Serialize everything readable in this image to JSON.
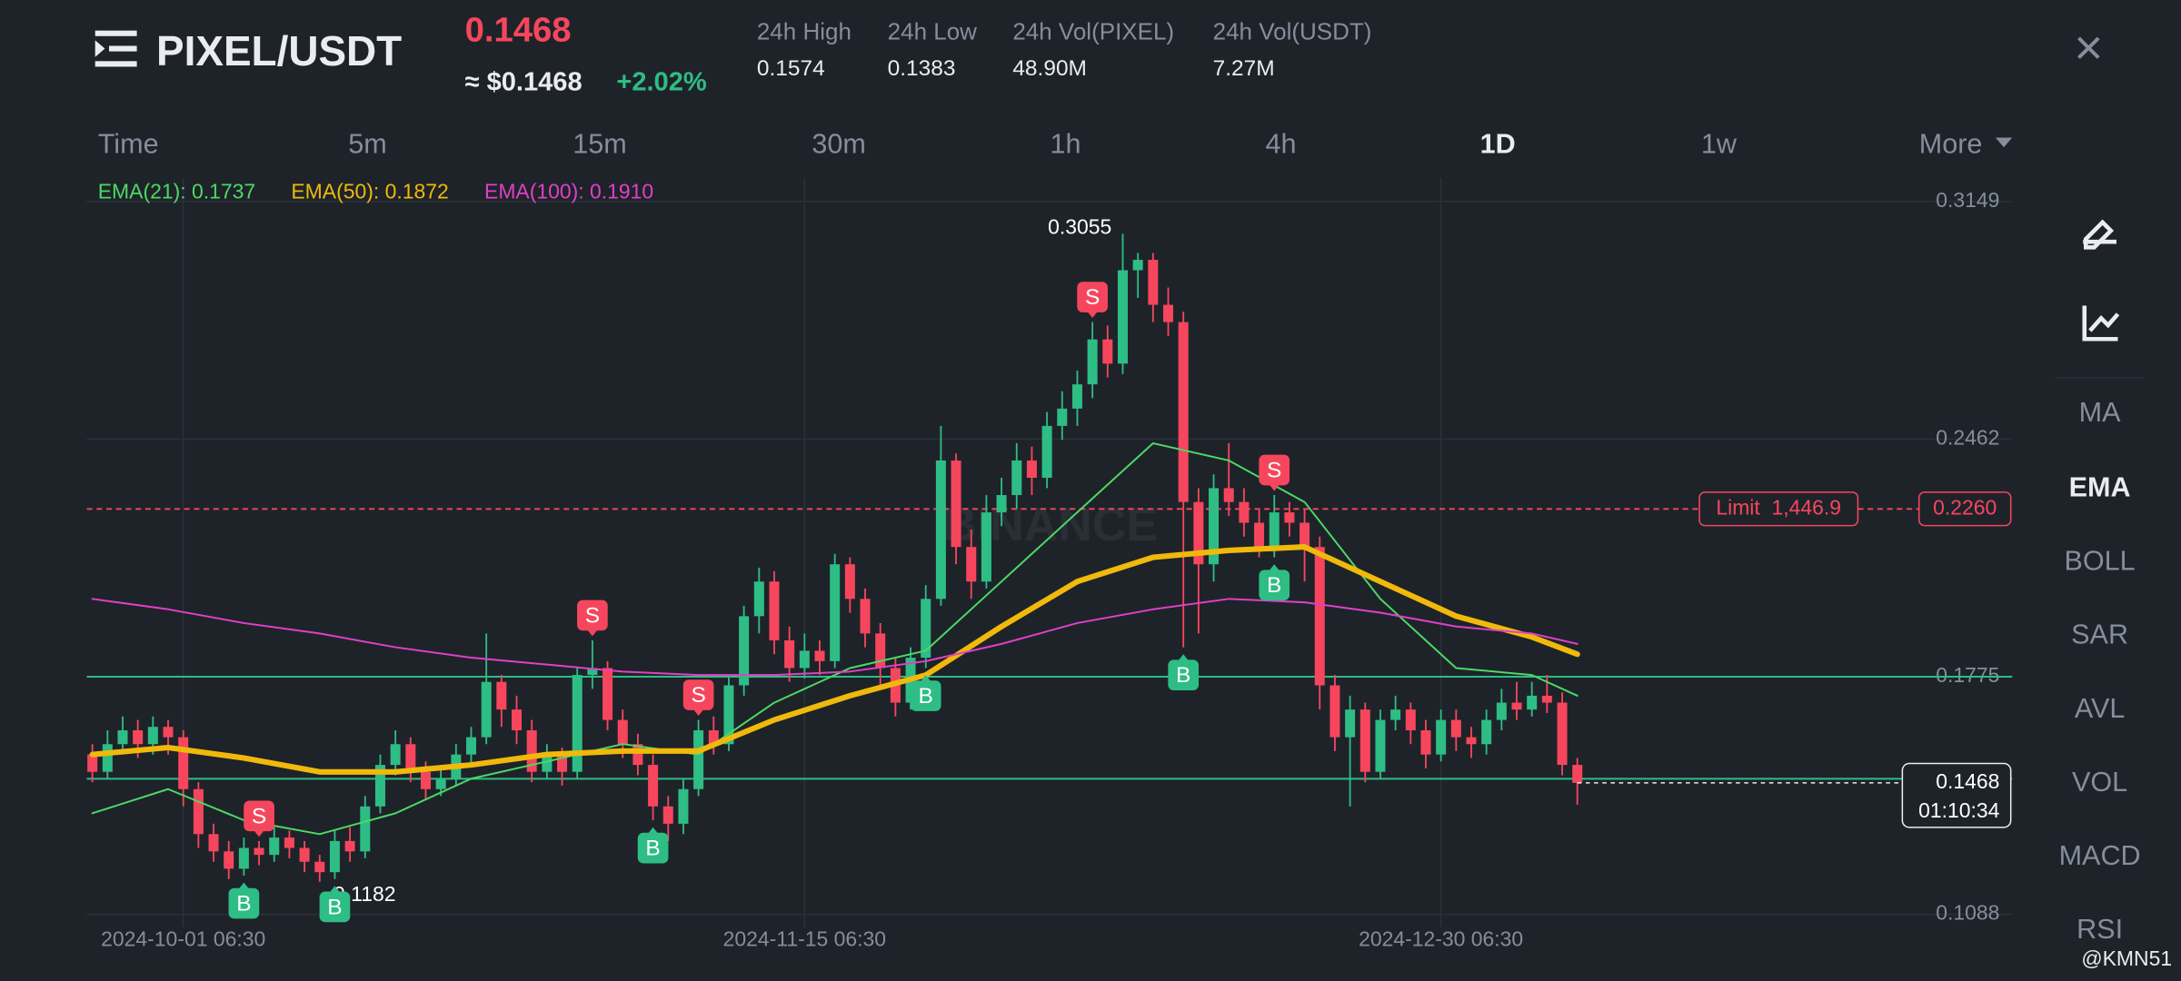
{
  "header": {
    "pair": "PIXEL/USDT",
    "price": "0.1468",
    "usd_price": "≈ $0.1468",
    "change": "+2.02%",
    "stats": [
      {
        "label": "24h High",
        "value": "0.1574"
      },
      {
        "label": "24h Low",
        "value": "0.1383"
      },
      {
        "label": "24h Vol(PIXEL)",
        "value": "48.90M"
      },
      {
        "label": "24h Vol(USDT)",
        "value": "7.27M"
      }
    ],
    "close": "×"
  },
  "timeframes": [
    {
      "label": "Time",
      "active": false
    },
    {
      "label": "5m",
      "active": false
    },
    {
      "label": "15m",
      "active": false
    },
    {
      "label": "30m",
      "active": false
    },
    {
      "label": "1h",
      "active": false
    },
    {
      "label": "4h",
      "active": false
    },
    {
      "label": "1D",
      "active": true
    },
    {
      "label": "1w",
      "active": false
    },
    {
      "label": "More",
      "active": false
    }
  ],
  "sidebar": [
    {
      "label": "MA",
      "active": false
    },
    {
      "label": "EMA",
      "active": true
    },
    {
      "label": "BOLL",
      "active": false
    },
    {
      "label": "SAR",
      "active": false
    },
    {
      "label": "AVL",
      "active": false
    },
    {
      "label": "VOL",
      "active": false
    },
    {
      "label": "MACD",
      "active": false
    },
    {
      "label": "RSI",
      "active": false
    }
  ],
  "watermark": "BINANCE",
  "credit": "@KMN51",
  "chart_data": {
    "type": "candlestick",
    "categories": [
      null,
      null,
      null,
      null,
      null,
      null,
      "2024-10-01 06:30",
      null,
      null,
      null,
      null,
      null,
      null,
      null,
      null,
      null,
      null,
      null,
      null,
      null,
      null,
      null,
      null,
      null,
      null,
      null,
      null,
      null,
      null,
      null,
      null,
      null,
      null,
      null,
      null,
      null,
      null,
      null,
      null,
      null,
      null,
      null,
      null,
      null,
      null,
      null,
      null,
      "2024-11-15 06:30",
      null,
      null,
      null,
      null,
      null,
      null,
      null,
      null,
      null,
      null,
      null,
      null,
      null,
      null,
      null,
      null,
      null,
      null,
      null,
      null,
      null,
      null,
      null,
      null,
      null,
      null,
      null,
      null,
      null,
      null,
      null,
      null,
      null,
      null,
      null,
      null,
      null,
      null,
      null,
      null,
      null,
      "2024-12-30 06:30",
      null,
      null,
      null,
      null,
      null,
      null,
      null,
      null,
      null
    ],
    "open": [
      0.155,
      0.15,
      0.158,
      0.162,
      0.158,
      0.163,
      0.16,
      0.145,
      0.132,
      0.127,
      0.122,
      0.128,
      0.126,
      0.131,
      0.128,
      0.124,
      0.121,
      0.13,
      0.127,
      0.14,
      0.152,
      0.158,
      0.15,
      0.145,
      0.148,
      0.155,
      0.16,
      0.176,
      0.168,
      0.162,
      0.15,
      0.155,
      0.15,
      0.178,
      0.18,
      0.165,
      0.158,
      0.152,
      0.14,
      0.135,
      0.145,
      0.162,
      0.158,
      0.175,
      0.195,
      0.205,
      0.188,
      0.18,
      0.185,
      0.182,
      0.21,
      0.2,
      0.19,
      0.18,
      0.17,
      0.183,
      0.2,
      0.24,
      0.215,
      0.205,
      0.225,
      0.23,
      0.24,
      0.235,
      0.25,
      0.255,
      0.262,
      0.275,
      0.268,
      0.295,
      0.298,
      0.285,
      0.28,
      0.228,
      0.21,
      0.232,
      0.228,
      0.222,
      0.215,
      0.225,
      0.222,
      0.215,
      0.175,
      0.16,
      0.168,
      0.15,
      0.165,
      0.168,
      0.162,
      0.155,
      0.165,
      0.16,
      0.158,
      0.165,
      0.17,
      0.168,
      0.172,
      0.17,
      0.152
    ],
    "high": [
      0.158,
      0.162,
      0.166,
      0.165,
      0.166,
      0.165,
      0.162,
      0.147,
      0.135,
      0.13,
      0.131,
      0.13,
      0.134,
      0.133,
      0.13,
      0.126,
      0.133,
      0.134,
      0.143,
      0.155,
      0.162,
      0.16,
      0.153,
      0.152,
      0.158,
      0.163,
      0.19,
      0.178,
      0.172,
      0.165,
      0.158,
      0.157,
      0.18,
      0.188,
      0.182,
      0.168,
      0.161,
      0.155,
      0.143,
      0.148,
      0.165,
      0.166,
      0.178,
      0.198,
      0.209,
      0.208,
      0.192,
      0.19,
      0.188,
      0.213,
      0.212,
      0.203,
      0.193,
      0.183,
      0.186,
      0.204,
      0.25,
      0.242,
      0.22,
      0.23,
      0.235,
      0.245,
      0.244,
      0.254,
      0.26,
      0.266,
      0.28,
      0.279,
      0.3055,
      0.3,
      0.3,
      0.29,
      0.283,
      0.232,
      0.236,
      0.245,
      0.232,
      0.226,
      0.23,
      0.228,
      0.226,
      0.218,
      0.178,
      0.172,
      0.17,
      0.168,
      0.172,
      0.17,
      0.165,
      0.168,
      0.168,
      0.163,
      0.168,
      0.174,
      0.176,
      0.176,
      0.178,
      0.173,
      0.154
    ],
    "low": [
      0.147,
      0.148,
      0.155,
      0.154,
      0.155,
      0.155,
      0.14,
      0.128,
      0.124,
      0.119,
      0.12,
      0.123,
      0.124,
      0.125,
      0.121,
      0.1182,
      0.119,
      0.124,
      0.125,
      0.138,
      0.149,
      0.147,
      0.142,
      0.143,
      0.146,
      0.152,
      0.158,
      0.163,
      0.158,
      0.147,
      0.148,
      0.146,
      0.148,
      0.174,
      0.162,
      0.154,
      0.149,
      0.136,
      0.13,
      0.132,
      0.143,
      0.155,
      0.156,
      0.172,
      0.19,
      0.184,
      0.176,
      0.177,
      0.178,
      0.18,
      0.196,
      0.186,
      0.175,
      0.166,
      0.168,
      0.18,
      0.198,
      0.21,
      0.2,
      0.203,
      0.221,
      0.226,
      0.23,
      0.232,
      0.246,
      0.25,
      0.258,
      0.264,
      0.265,
      0.287,
      0.28,
      0.276,
      0.186,
      0.19,
      0.205,
      0.224,
      0.218,
      0.212,
      0.212,
      0.218,
      0.205,
      0.168,
      0.156,
      0.14,
      0.147,
      0.148,
      0.162,
      0.158,
      0.151,
      0.153,
      0.156,
      0.154,
      0.155,
      0.162,
      0.165,
      0.166,
      0.167,
      0.149,
      0.1405
    ],
    "close": [
      0.15,
      0.158,
      0.162,
      0.158,
      0.163,
      0.16,
      0.145,
      0.132,
      0.127,
      0.122,
      0.128,
      0.126,
      0.131,
      0.128,
      0.124,
      0.121,
      0.13,
      0.127,
      0.14,
      0.152,
      0.158,
      0.15,
      0.145,
      0.148,
      0.155,
      0.16,
      0.176,
      0.168,
      0.162,
      0.15,
      0.155,
      0.15,
      0.178,
      0.18,
      0.165,
      0.158,
      0.152,
      0.14,
      0.135,
      0.145,
      0.162,
      0.158,
      0.175,
      0.195,
      0.205,
      0.188,
      0.18,
      0.185,
      0.182,
      0.21,
      0.2,
      0.19,
      0.18,
      0.17,
      0.183,
      0.2,
      0.24,
      0.215,
      0.205,
      0.225,
      0.23,
      0.24,
      0.235,
      0.25,
      0.255,
      0.262,
      0.275,
      0.268,
      0.295,
      0.298,
      0.285,
      0.28,
      0.228,
      0.21,
      0.232,
      0.228,
      0.222,
      0.215,
      0.225,
      0.222,
      0.215,
      0.175,
      0.16,
      0.168,
      0.15,
      0.165,
      0.168,
      0.162,
      0.155,
      0.165,
      0.16,
      0.158,
      0.165,
      0.17,
      0.168,
      0.172,
      0.17,
      0.152,
      0.1468
    ],
    "up_color": "#2ebd85",
    "down_color": "#f6465d",
    "series": [
      {
        "name": "EMA(21): 0.1737",
        "color": "#4cd964",
        "width": 1.3,
        "x": [
          0,
          5,
          10,
          15,
          20,
          25,
          30,
          35,
          40,
          45,
          50,
          55,
          60,
          65,
          70,
          75,
          80,
          85,
          90,
          95,
          98
        ],
        "values": [
          0.138,
          0.145,
          0.136,
          0.132,
          0.138,
          0.148,
          0.153,
          0.158,
          0.155,
          0.17,
          0.18,
          0.185,
          0.205,
          0.225,
          0.245,
          0.24,
          0.228,
          0.2,
          0.18,
          0.178,
          0.172
        ]
      },
      {
        "name": "EMA(50): 0.1872",
        "color": "#f0b90b",
        "width": 4,
        "x": [
          0,
          5,
          10,
          15,
          20,
          25,
          30,
          35,
          40,
          45,
          50,
          55,
          60,
          65,
          70,
          75,
          80,
          85,
          90,
          95,
          98
        ],
        "values": [
          0.155,
          0.157,
          0.154,
          0.15,
          0.15,
          0.152,
          0.155,
          0.156,
          0.156,
          0.165,
          0.172,
          0.178,
          0.192,
          0.205,
          0.212,
          0.214,
          0.215,
          0.205,
          0.195,
          0.189,
          0.184
        ]
      },
      {
        "name": "EMA(100): 0.1910",
        "color": "#e040c8",
        "width": 1.3,
        "x": [
          0,
          5,
          10,
          15,
          20,
          25,
          30,
          35,
          40,
          45,
          50,
          55,
          60,
          65,
          70,
          75,
          80,
          85,
          90,
          95,
          98
        ],
        "values": [
          0.2,
          0.197,
          0.193,
          0.19,
          0.186,
          0.183,
          0.181,
          0.179,
          0.178,
          0.178,
          0.179,
          0.182,
          0.187,
          0.193,
          0.197,
          0.2,
          0.199,
          0.196,
          0.192,
          0.19,
          0.187
        ]
      }
    ],
    "ylim": [
      0.1052,
      0.3217
    ],
    "yticks": [
      0.3149,
      0.2462,
      0.1775,
      0.1088
    ],
    "grid": true,
    "levels": [
      {
        "value": 0.1775,
        "color": "#2ebd85"
      },
      {
        "value": 0.148,
        "color": "#2ebd85"
      }
    ],
    "limit_order": {
      "label": "Limit  1,446.9",
      "value": 0.226,
      "value_label": "0.2260",
      "color": "#f6465d"
    },
    "last_price": {
      "value": 0.1468,
      "countdown": "01:10:34"
    },
    "markers": [
      {
        "index": 10,
        "side": "B"
      },
      {
        "index": 11,
        "side": "S"
      },
      {
        "index": 16,
        "side": "B"
      },
      {
        "index": 33,
        "side": "S"
      },
      {
        "index": 37,
        "side": "B"
      },
      {
        "index": 40,
        "side": "S"
      },
      {
        "index": 55,
        "side": "B"
      },
      {
        "index": 66,
        "side": "S"
      },
      {
        "index": 72,
        "side": "B"
      },
      {
        "index": 78,
        "side": "S"
      },
      {
        "index": 78,
        "side": "B"
      }
    ]
  }
}
